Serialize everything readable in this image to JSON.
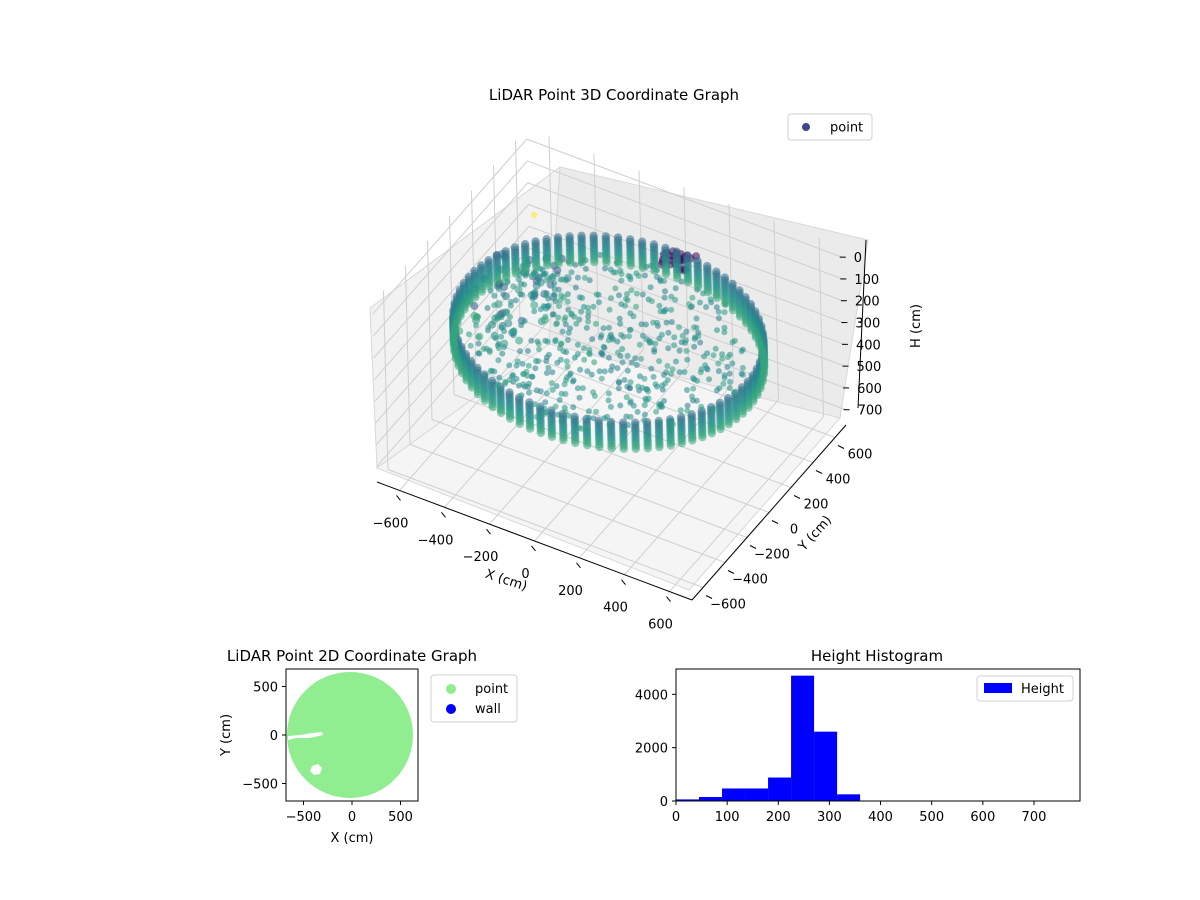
{
  "colors": {
    "point_3d": "#3f4788",
    "point_2d": "#90ee90",
    "wall": "#0000ff",
    "hist": "#0000ff",
    "viridis": [
      "#440154",
      "#3b528b",
      "#21918c",
      "#5ec962",
      "#fde725"
    ]
  },
  "chart_data": [
    {
      "type": "scatter",
      "projection": "3d",
      "title": "LiDAR Point 3D Coordinate Graph",
      "xlabel": "X (cm)",
      "ylabel": "Y (cm)",
      "zlabel": "H (cm)",
      "xlim": [
        -700,
        700
      ],
      "ylim": [
        -700,
        700
      ],
      "zlim": [
        770,
        0
      ],
      "zaxis_inverted": true,
      "xticks": [
        "−600",
        "−400",
        "−200",
        "0",
        "200",
        "400",
        "600"
      ],
      "yticks": [
        "−600",
        "−400",
        "−200",
        "0",
        "200",
        "400",
        "600"
      ],
      "zticks": [
        "0",
        "100",
        "200",
        "300",
        "400",
        "500",
        "600",
        "700"
      ],
      "legend": [
        "point"
      ],
      "legend_position": "top-right",
      "grid": true,
      "colormap": "viridis",
      "series": [
        {
          "name": "point",
          "description_shape": "circular wall of radius ~620 cm, heights ~200-320 cm, with interior floor/obstacle points",
          "wall_radius": 620,
          "wall_height_range": [
            200,
            320
          ],
          "outlier": {
            "x": -650,
            "y": 650,
            "h": 300
          }
        }
      ]
    },
    {
      "type": "scatter",
      "title": "LiDAR Point 2D Coordinate Graph",
      "xlabel": "X (cm)",
      "ylabel": "Y (cm)",
      "xlim": [
        -680,
        680
      ],
      "ylim": [
        -680,
        680
      ],
      "xticks": [
        "−500",
        "0",
        "500"
      ],
      "yticks": [
        "500",
        "0",
        "−500"
      ],
      "legend": [
        "point",
        "wall"
      ],
      "legend_position": "outside-right",
      "series": [
        {
          "name": "point",
          "shape": "filled disk",
          "radius": 630,
          "holes": [
            "gap near (-400, 0)",
            "gap near (-350, -350)"
          ]
        },
        {
          "name": "wall",
          "values": []
        }
      ]
    },
    {
      "type": "bar",
      "histogram": true,
      "title": "Height Histogram",
      "xlabel": "",
      "ylabel": "",
      "xlim": [
        0,
        790
      ],
      "ylim": [
        0,
        4950
      ],
      "xticks": [
        "0",
        "100",
        "200",
        "300",
        "400",
        "500",
        "600",
        "700"
      ],
      "yticks": [
        "0",
        "2000",
        "4000"
      ],
      "legend": [
        "Height"
      ],
      "legend_position": "top-right",
      "bin_edges": [
        0,
        45,
        90,
        135,
        180,
        225,
        270,
        315,
        360,
        405,
        450,
        495,
        540,
        585,
        630,
        675,
        720,
        765
      ],
      "series": [
        {
          "name": "Height",
          "values": [
            60,
            150,
            470,
            470,
            880,
            4700,
            2600,
            250,
            10,
            5,
            3,
            2,
            2,
            1,
            1,
            1,
            1
          ]
        }
      ]
    }
  ]
}
